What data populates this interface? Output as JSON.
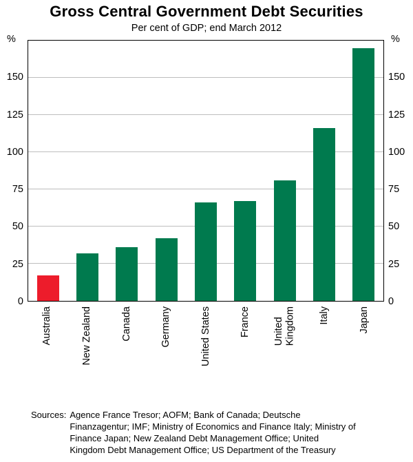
{
  "title": "Gross Central Government Debt Securities",
  "subtitle": "Per cent of GDP; end March 2012",
  "axis": {
    "unit_left": "%",
    "unit_right": "%"
  },
  "chart_data": {
    "type": "bar",
    "title": "Gross Central Government Debt Securities",
    "subtitle": "Per cent of GDP; end March 2012",
    "unit": "%",
    "categories": [
      "Australia",
      "New Zealand",
      "Canada",
      "Germany",
      "United States",
      "France",
      "United Kingdom",
      "Italy",
      "Japan"
    ],
    "category_labels": [
      "Australia",
      "New Zealand",
      "Canada",
      "Germany",
      "United States",
      "France",
      "United\nKingdom",
      "Italy",
      "Japan"
    ],
    "values": [
      17,
      32,
      36,
      42,
      66,
      67,
      81,
      116,
      170
    ],
    "bar_colors": [
      "#ed1c2b",
      "#007a4e",
      "#007a4e",
      "#007a4e",
      "#007a4e",
      "#007a4e",
      "#007a4e",
      "#007a4e",
      "#007a4e"
    ],
    "highlight_category": "Australia",
    "ylim": [
      0,
      175
    ],
    "yticks": [
      0,
      25,
      50,
      75,
      100,
      125,
      150
    ],
    "grid": true,
    "legend": "none"
  },
  "sources": {
    "label": "Sources:",
    "text": "Agence France Tresor; AOFM; Bank of Canada; Deutsche Finanzagentur; IMF; Ministry of Economics and Finance Italy; Ministry of Finance Japan; New Zealand Debt Management Office; United Kingdom Debt Management Office; US Department of the Treasury"
  }
}
